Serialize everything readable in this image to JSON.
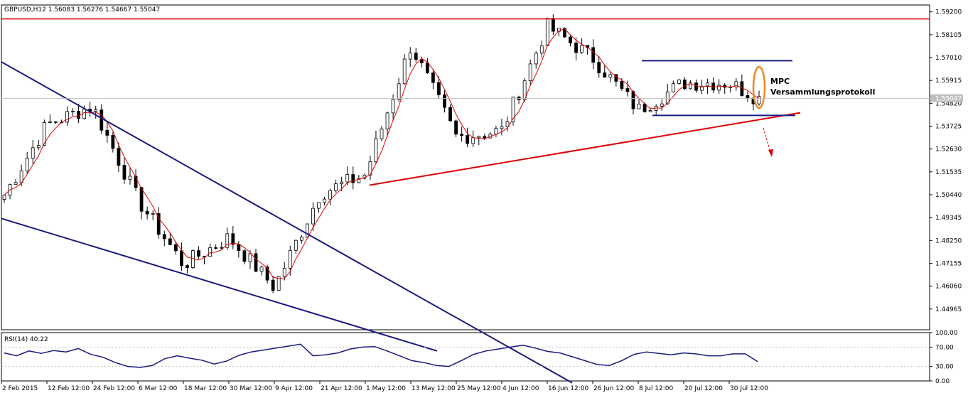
{
  "chart_data": [
    {
      "type": "candlestick",
      "title": "GBPUSD,H12  1.56083 1.56276 1.54667 1.55047",
      "symbol": "GBPUSD,H12",
      "ohlc_header": [
        "1.56083",
        "1.56276",
        "1.54667",
        "1.55047"
      ],
      "current_price_label": "1.55047",
      "current_price": 1.55047,
      "ylim": [
        1.4397,
        1.5953
      ],
      "y_ticks": [
        "1.59200",
        "1.58105",
        "1.57010",
        "1.55915",
        "1.54820",
        "1.53725",
        "1.52630",
        "1.51535",
        "1.50440",
        "1.49345",
        "1.48250",
        "1.47155",
        "1.46060",
        "1.44965"
      ],
      "grid": false,
      "x_ticks": [
        "2 Feb 2015",
        "12 Feb 12:00",
        "24 Feb 12:00",
        "6 Mar 12:00",
        "18 Mar 12:00",
        "30 Mar 12:00",
        "9 Apr 12:00",
        "21 Apr 12:00",
        "1 May 12:00",
        "13 May 12:00",
        "25 May 12:00",
        "4 Jun 12:00",
        "16 Jun 12:00",
        "26 Jun 12:00",
        "8 Jul 12:00",
        "20 Jul 12:00",
        "30 Jul 12:00"
      ],
      "key_closes": [
        {
          "date": "2 Feb 2015",
          "value": 1.502
        },
        {
          "date": "12 Feb 12:00",
          "value": 1.538
        },
        {
          "date": "24 Feb 12:00",
          "value": 1.547
        },
        {
          "date": "6 Mar 12:00",
          "value": 1.502
        },
        {
          "date": "18 Mar 12:00",
          "value": 1.471
        },
        {
          "date": "30 Mar 12:00",
          "value": 1.484
        },
        {
          "date": "9 Apr 12:00",
          "value": 1.46
        },
        {
          "date": "21 Apr 12:00",
          "value": 1.505
        },
        {
          "date": "1 May 12:00",
          "value": 1.514
        },
        {
          "date": "13 May 12:00",
          "value": 1.576
        },
        {
          "date": "25 May 12:00",
          "value": 1.532
        },
        {
          "date": "4 Jun 12:00",
          "value": 1.535
        },
        {
          "date": "16 Jun 12:00",
          "value": 1.585
        },
        {
          "date": "26 Jun 12:00",
          "value": 1.57
        },
        {
          "date": "8 Jul 12:00",
          "value": 1.545
        },
        {
          "date": "20 Jul 12:00",
          "value": 1.558
        },
        {
          "date": "30 Jul 12:00",
          "value": 1.558
        }
      ],
      "series": [
        {
          "name": "price",
          "style": "candles",
          "color": "#000000"
        },
        {
          "style": "line",
          "color": "#e00000"
        }
      ],
      "annotations": {
        "text": [
          "MPC",
          "Versammlungsprotokoll"
        ],
        "resistance_level": 1.5886,
        "descending_channel": {
          "upper": [
            {
              "date": "2 Feb 2015",
              "value": 1.568
            },
            {
              "date": "1 May 12:00",
              "value": 1.47
            }
          ],
          "lower": [
            {
              "date": "2 Feb 2015",
              "value": 1.493
            },
            {
              "date": "1 May 12:00",
              "value": 1.44
            }
          ]
        },
        "rising_support": [
          {
            "date": "1 May 12:00",
            "value": 1.509
          },
          {
            "date": "30 Jul 12:00",
            "value": 1.538
          }
        ],
        "range_box": {
          "top": 1.5686,
          "bottom": 1.5424
        },
        "colors": {
          "channel": "#1a1a80",
          "support": "#e00000",
          "highlight": "#ee8822"
        }
      }
    },
    {
      "type": "line",
      "title": "RSI(14) 40.22",
      "indicator": "RSI(14)",
      "last_value_label": "40.22",
      "last_value": 40.22,
      "ylim": [
        0,
        100
      ],
      "y_ticks": [
        "100.00",
        "70.00",
        "30.00",
        "0.00"
      ],
      "x_ticks": [
        "2 Feb 2015",
        "12 Feb 12:00",
        "24 Feb 12:00",
        "6 Mar 12:00",
        "18 Mar 12:00",
        "30 Mar 12:00",
        "9 Apr 12:00",
        "21 Apr 12:00",
        "1 May 12:00",
        "13 May 12:00",
        "25 May 12:00",
        "4 Jun 12:00",
        "16 Jun 12:00",
        "26 Jun 12:00",
        "8 Jul 12:00",
        "20 Jul 12:00",
        "30 Jul 12:00"
      ],
      "rsi_values": [
        58,
        52,
        62,
        57,
        63,
        60,
        67,
        55,
        49,
        38,
        30,
        28,
        32,
        46,
        52,
        47,
        43,
        35,
        41,
        53,
        60,
        64,
        68,
        72,
        76,
        52,
        54,
        58,
        66,
        70,
        71,
        62,
        52,
        42,
        38,
        32,
        30,
        42,
        55,
        62,
        66,
        70,
        74,
        68,
        61,
        58,
        50,
        42,
        34,
        32,
        42,
        55,
        60,
        57,
        54,
        58,
        56,
        52,
        52,
        56,
        56,
        40
      ],
      "series": [
        {
          "color": "#1a1a80"
        }
      ]
    }
  ]
}
